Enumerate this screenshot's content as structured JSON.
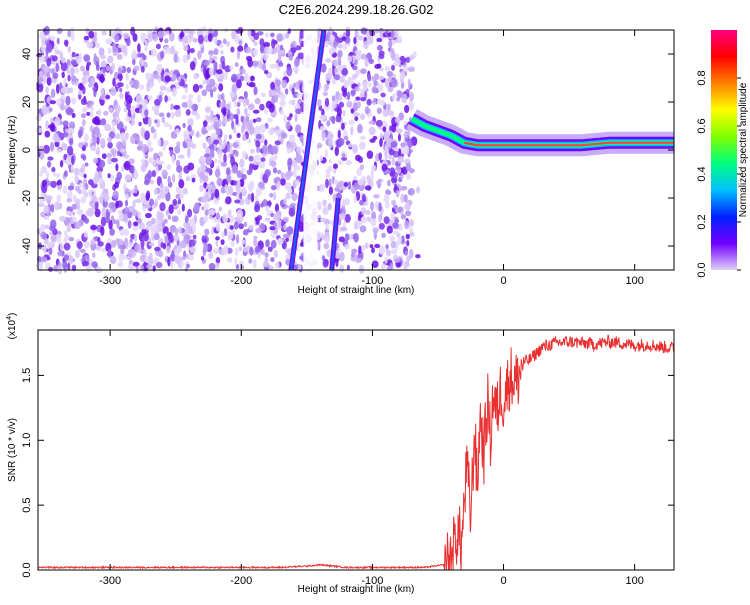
{
  "title": "C2E6.2024.299.18.26.G02",
  "chart_data": [
    {
      "type": "heatmap",
      "xlabel": "Height of straight line (km)",
      "ylabel": "Frequency (Hz)",
      "xlim": [
        -355,
        130
      ],
      "ylim": [
        -50,
        50
      ],
      "x_ticks": [
        -300,
        -200,
        -100,
        0,
        100
      ],
      "x_tick_labels": [
        "-300",
        "-200",
        "-100",
        "0",
        "100"
      ],
      "y_ticks": [
        -40,
        -20,
        0,
        20,
        40
      ],
      "y_tick_labels": [
        "-40",
        "-20",
        "0",
        "20",
        "40"
      ],
      "colorbar": {
        "label": "Normalized spectral amplitude",
        "range": [
          0,
          1
        ],
        "ticks": [
          0,
          0.2,
          0.4,
          0.6,
          0.8
        ],
        "tick_labels": [
          "0.0",
          "0.2",
          "0.4",
          "0.6",
          "0.8"
        ],
        "colormap": [
          "#e0d0f8",
          "#7000ff",
          "#0020ff",
          "#00c0ff",
          "#00ff80",
          "#80ff00",
          "#ffff00",
          "#ff8000",
          "#ff0000",
          "#ff0080"
        ]
      },
      "noise_region_x": [
        -355,
        -70
      ],
      "signal_tone": [
        {
          "x": -70,
          "f": 13
        },
        {
          "x": -60,
          "f": 10
        },
        {
          "x": -50,
          "f": 8
        },
        {
          "x": -40,
          "f": 6
        },
        {
          "x": -30,
          "f": 3
        },
        {
          "x": -20,
          "f": 2
        },
        {
          "x": -10,
          "f": 2
        },
        {
          "x": 0,
          "f": 2
        },
        {
          "x": 20,
          "f": 2
        },
        {
          "x": 40,
          "f": 2
        },
        {
          "x": 60,
          "f": 2
        },
        {
          "x": 80,
          "f": 3
        },
        {
          "x": 100,
          "f": 3
        },
        {
          "x": 130,
          "f": 3
        }
      ],
      "streak_lines": [
        {
          "x": [
            -162,
            -137
          ],
          "f": [
            -50,
            50
          ]
        },
        {
          "x": [
            -131,
            -126
          ],
          "f": [
            -50,
            -20
          ]
        }
      ],
      "grid": false
    },
    {
      "type": "line",
      "xlabel": "Height of straight line (km)",
      "ylabel": "SNR (10 * v/v)",
      "y_multiplier_label": "(x10",
      "y_multiplier_exp": "4",
      "xlim": [
        -355,
        130
      ],
      "ylim": [
        0,
        1.85
      ],
      "x_ticks": [
        -300,
        -200,
        -100,
        0,
        100
      ],
      "x_tick_labels": [
        "-300",
        "-200",
        "-100",
        "0",
        "100"
      ],
      "y_ticks": [
        0,
        0.5,
        1.0,
        1.5
      ],
      "y_tick_labels": [
        "0.0",
        "0.5",
        "1.0",
        "1.5"
      ],
      "series": [
        {
          "color": "#e83030",
          "x": [
            -355,
            -300,
            -250,
            -200,
            -170,
            -150,
            -140,
            -120,
            -100,
            -80,
            -60,
            -45,
            -40,
            -35,
            -32,
            -28,
            -25,
            -22,
            -20,
            -18,
            -15,
            -12,
            -10,
            -8,
            -5,
            -2,
            0,
            5,
            10,
            15,
            20,
            30,
            40,
            50,
            60,
            70,
            80,
            90,
            100,
            110,
            120,
            130
          ],
          "y": [
            0.02,
            0.02,
            0.02,
            0.02,
            0.02,
            0.03,
            0.04,
            0.02,
            0.02,
            0.02,
            0.02,
            0.04,
            0.1,
            0.3,
            0.2,
            0.8,
            0.4,
            1.1,
            0.6,
            1.2,
            0.9,
            1.3,
            1.0,
            1.35,
            1.2,
            1.4,
            1.3,
            1.5,
            1.45,
            1.6,
            1.62,
            1.72,
            1.75,
            1.76,
            1.75,
            1.74,
            1.76,
            1.75,
            1.73,
            1.74,
            1.72,
            1.71
          ]
        }
      ],
      "grid": false
    }
  ]
}
